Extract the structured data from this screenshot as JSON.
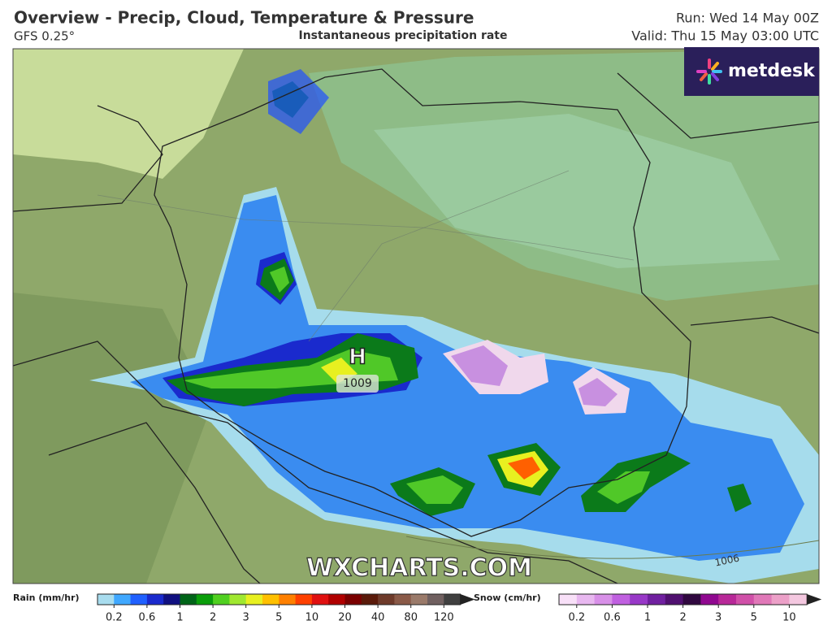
{
  "header": {
    "title": "Overview - Precip, Cloud, Temperature & Pressure",
    "model": "GFS 0.25°",
    "subtitle": "Instantaneous precipitation rate",
    "run": "Run: Wed 14 May 00Z",
    "valid": "Valid: Thu 15 May 03:00 UTC"
  },
  "logo": "metdesk",
  "watermark": "WXCHARTS.COM",
  "map_labels": {
    "high": "H",
    "high_pressure": "1009",
    "isobar": "1006"
  },
  "legend": {
    "rain": {
      "label": "Rain (mm/hr)",
      "ticks": [
        0.2,
        0.6,
        1,
        2,
        3,
        5,
        10,
        20,
        40,
        80,
        120
      ]
    },
    "snow": {
      "label": "Snow (cm/hr)",
      "ticks": [
        0.2,
        0.6,
        1,
        2,
        3,
        5,
        10
      ]
    }
  }
}
